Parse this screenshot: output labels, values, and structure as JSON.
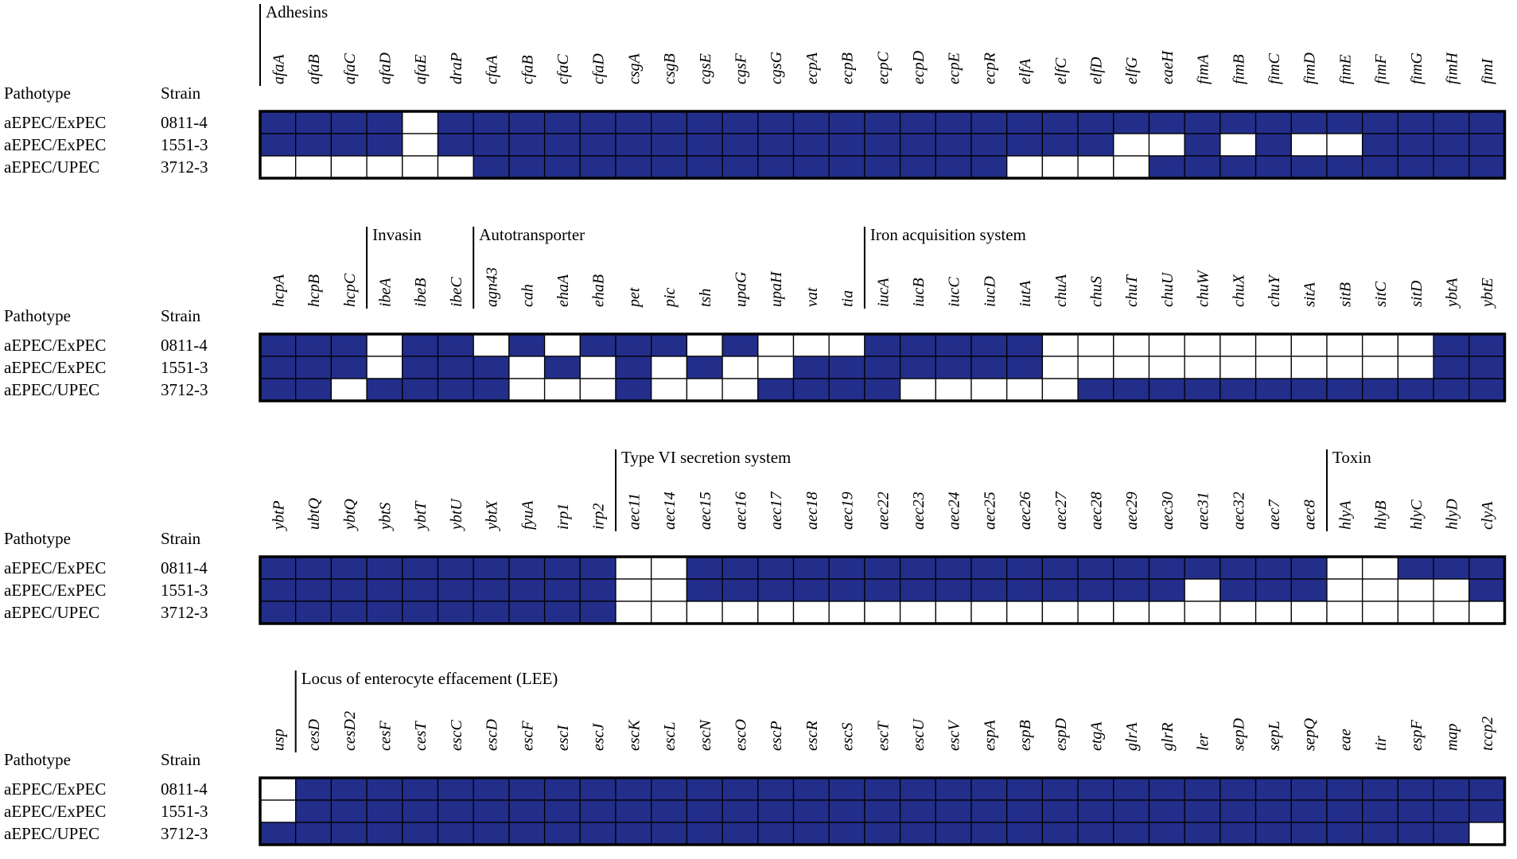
{
  "chart_data": {
    "type": "heatmap",
    "fill_color": "#232e8a",
    "absent_color": "#ffffff",
    "row_header_labels": {
      "pathotype": "Pathotype",
      "strain": "Strain"
    },
    "rows": [
      {
        "pathotype": "aEPEC/ExPEC",
        "strain": "0811-4"
      },
      {
        "pathotype": "aEPEC/ExPEC",
        "strain": "1551-3"
      },
      {
        "pathotype": "aEPEC/UPEC",
        "strain": "3712-3"
      }
    ],
    "panels": [
      {
        "genes": [
          "afaA",
          "afaB",
          "afaC",
          "afaD",
          "afaE",
          "draP",
          "cfaA",
          "cfaB",
          "cfaC",
          "cfaD",
          "csgA",
          "csgB",
          "cgsE",
          "cgsF",
          "cgsG",
          "ecpA",
          "ecpB",
          "ecpC",
          "ecpD",
          "ecpE",
          "ecpR",
          "elfA",
          "elfC",
          "elfD",
          "elfG",
          "eaeH",
          "fimA",
          "fimB",
          "fimC",
          "fimD",
          "fimE",
          "fimF",
          "fimG",
          "fimH",
          "fimI"
        ],
        "categories": [
          {
            "name": "Adhesins",
            "start": 0
          }
        ],
        "values": [
          "11110111111111111111111111111111111",
          "11110111111111111111111100101001111",
          "00000011111111111111100001111111111"
        ]
      },
      {
        "genes": [
          "hcpA",
          "hcpB",
          "hcpC",
          "ibeA",
          "ibeB",
          "ibeC",
          "agn43",
          "cah",
          "ehaA",
          "ehaB",
          "pet",
          "pic",
          "tsh",
          "upaG",
          "upaH",
          "vat",
          "tia",
          "iucA",
          "iucB",
          "iucC",
          "iucD",
          "iutA",
          "chuA",
          "chuS",
          "chuT",
          "chuU",
          "chuW",
          "chuX",
          "chuY",
          "sitA",
          "sitB",
          "sitC",
          "sitD",
          "ybtA",
          "ybtE"
        ],
        "categories": [
          {
            "name": "Invasin",
            "start": 3
          },
          {
            "name": "Autotransporter",
            "start": 6
          },
          {
            "name": "Iron acquisition system",
            "start": 17
          }
        ],
        "values": [
          "11101101011101000111110000000000011",
          "11101110101010011111110000000000011",
          "11011110001000111100000111111111111"
        ]
      },
      {
        "genes": [
          "ybtP",
          "ubtQ",
          "ybtQ",
          "ybtS",
          "ybtT",
          "ybtU",
          "ybtX",
          "fyuA",
          "irp1",
          "irp2",
          "aec11",
          "aec14",
          "aec15",
          "aec16",
          "aec17",
          "aec18",
          "aec19",
          "aec22",
          "aec23",
          "aec24",
          "aec25",
          "aec26",
          "aec27",
          "aec28",
          "aec29",
          "aec30",
          "aec31",
          "aec32",
          "aec7",
          "aec8",
          "hlyA",
          "hlyB",
          "hlyC",
          "hlyD",
          "clyA"
        ],
        "categories": [
          {
            "name": "Type VI secretion system",
            "start": 10
          },
          {
            "name": "Toxin",
            "start": 30
          }
        ],
        "values": [
          "11111111110011111111111111111100111",
          "11111111110011111111111111011100001",
          "11111111110000000000000000000000000"
        ]
      },
      {
        "genes": [
          "usp",
          "cesD",
          "cesD2",
          "cesF",
          "cesT",
          "escC",
          "escD",
          "escF",
          "escI",
          "escJ",
          "escK",
          "escL",
          "escN",
          "escO",
          "escP",
          "escR",
          "escS",
          "escT",
          "escU",
          "escV",
          "espA",
          "espB",
          "espD",
          "etgA",
          "glrA",
          "glrR",
          "ler",
          "sepD",
          "sepL",
          "sepQ",
          "eae",
          "tir",
          "espF",
          "map",
          "tccp2"
        ],
        "categories": [
          {
            "name": "Locus of enterocyte effacement  (LEE)",
            "start": 1
          }
        ],
        "values": [
          "01111111111111111111111111111111111",
          "01111111111111111111111111111111111",
          "11111111111111111111111111111111110"
        ]
      }
    ]
  }
}
